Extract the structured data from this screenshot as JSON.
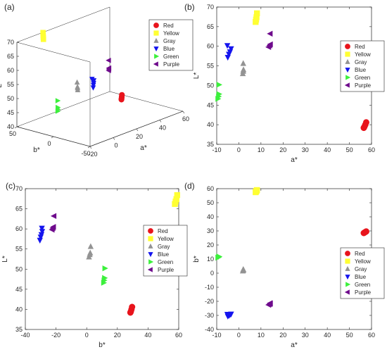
{
  "figure": {
    "colors": {
      "Red": "#e8141c",
      "Yellow": "#ffff33",
      "Gray": "#939393",
      "Blue": "#1414ee",
      "Green": "#3cf03c",
      "Purple": "#6e0a8c",
      "axis": "#262626"
    },
    "markers": {
      "Red": "circle",
      "Yellow": "square",
      "Gray": "triangle-up",
      "Blue": "triangle-down",
      "Green": "triangle-right",
      "Purple": "triangle-left"
    }
  },
  "chart_data": [
    {
      "panel": "(a)",
      "type": "scatter",
      "projection": "3d",
      "xlabel": "a*",
      "ylabel": "b*",
      "zlabel": "L*",
      "xlim": [
        -20,
        60
      ],
      "ylim": [
        -50,
        50
      ],
      "zlim": [
        40,
        70
      ],
      "xticks": [
        -20,
        0,
        20,
        40,
        60
      ],
      "yticks": [
        -50,
        0,
        50
      ],
      "zticks": [
        40,
        45,
        50,
        55,
        60,
        65,
        70
      ],
      "legend": "top-right",
      "legend_entries": [
        "Red",
        "Yellow",
        "Gray",
        "Blue",
        "Green",
        "Purple"
      ],
      "series": [
        {
          "name": "Red",
          "points": [
            [
              56.5,
              28.5,
              39.2
            ],
            [
              56.8,
              28.8,
              39.5
            ],
            [
              57.2,
              29.2,
              40.0
            ],
            [
              57.6,
              29.6,
              40.6
            ]
          ]
        },
        {
          "name": "Yellow",
          "points": [
            [
              7.6,
              57.5,
              66.2
            ],
            [
              7.8,
              58.0,
              66.8
            ],
            [
              8.0,
              58.5,
              67.4
            ],
            [
              8.2,
              59.0,
              68.4
            ]
          ]
        },
        {
          "name": "Gray",
          "points": [
            [
              1.8,
              1.5,
              53.0
            ],
            [
              2.0,
              2.0,
              53.6
            ],
            [
              2.1,
              2.3,
              54.0
            ],
            [
              2.0,
              2.6,
              55.6
            ]
          ]
        },
        {
          "name": "Blue",
          "points": [
            [
              -5.0,
              -30.5,
              57.2
            ],
            [
              -4.5,
              -30.0,
              58.0
            ],
            [
              -4.0,
              -29.5,
              58.6
            ],
            [
              -3.5,
              -29.0,
              59.4
            ],
            [
              -5.2,
              -29.2,
              60.2
            ]
          ]
        },
        {
          "name": "Green",
          "points": [
            [
              -9.5,
              11.0,
              46.6
            ],
            [
              -9.2,
              11.3,
              47.2
            ],
            [
              -9.0,
              11.6,
              47.8
            ],
            [
              -9.0,
              11.8,
              50.2
            ]
          ]
        },
        {
          "name": "Purple",
          "points": [
            [
              13.5,
              -22.5,
              59.8
            ],
            [
              14.0,
              -22.0,
              60.2
            ],
            [
              14.3,
              -21.6,
              60.5
            ],
            [
              14.2,
              -21.3,
              63.2
            ]
          ]
        }
      ]
    },
    {
      "panel": "(b)",
      "type": "scatter",
      "xlabel": "a*",
      "ylabel": "L*",
      "xlim": [
        -10,
        60
      ],
      "ylim": [
        35,
        70
      ],
      "xticks": [
        -10,
        0,
        10,
        20,
        30,
        40,
        50,
        60
      ],
      "yticks": [
        35,
        40,
        45,
        50,
        55,
        60,
        65,
        70
      ],
      "legend": "right",
      "legend_entries": [
        "Red",
        "Yellow",
        "Gray",
        "Blue",
        "Green",
        "Purple"
      ],
      "series": [
        {
          "name": "Red",
          "x": [
            56.5,
            56.8,
            57.2,
            57.6
          ],
          "y": [
            39.2,
            39.5,
            40.0,
            40.6
          ]
        },
        {
          "name": "Yellow",
          "x": [
            7.6,
            7.8,
            8.0,
            8.2
          ],
          "y": [
            66.2,
            66.8,
            67.4,
            68.4
          ]
        },
        {
          "name": "Gray",
          "x": [
            1.8,
            2.0,
            2.1,
            2.0
          ],
          "y": [
            53.0,
            53.6,
            54.0,
            55.6
          ]
        },
        {
          "name": "Blue",
          "x": [
            -5.0,
            -4.5,
            -4.0,
            -3.5,
            -5.2
          ],
          "y": [
            57.2,
            58.0,
            58.6,
            59.4,
            60.2
          ]
        },
        {
          "name": "Green",
          "x": [
            -9.5,
            -9.2,
            -9.0,
            -9.0
          ],
          "y": [
            46.6,
            47.2,
            47.8,
            50.2
          ]
        },
        {
          "name": "Purple",
          "x": [
            13.5,
            14.0,
            14.3,
            14.2
          ],
          "y": [
            59.8,
            60.2,
            60.5,
            63.2
          ]
        }
      ]
    },
    {
      "panel": "(c)",
      "type": "scatter",
      "xlabel": "b*",
      "ylabel": "L*",
      "xlim": [
        -40,
        60
      ],
      "ylim": [
        35,
        70
      ],
      "xticks": [
        -40,
        -20,
        0,
        20,
        40,
        60
      ],
      "yticks": [
        35,
        40,
        45,
        50,
        55,
        60,
        65,
        70
      ],
      "legend": "bottom-right",
      "legend_entries": [
        "Red",
        "Yellow",
        "Gray",
        "Blue",
        "Green",
        "Purple"
      ],
      "series": [
        {
          "name": "Red",
          "x": [
            28.5,
            28.8,
            29.2,
            29.6
          ],
          "y": [
            39.2,
            39.5,
            40.0,
            40.6
          ]
        },
        {
          "name": "Yellow",
          "x": [
            57.5,
            58.0,
            58.5,
            59.0
          ],
          "y": [
            66.2,
            66.8,
            67.4,
            68.4
          ]
        },
        {
          "name": "Gray",
          "x": [
            1.5,
            2.0,
            2.3,
            2.6
          ],
          "y": [
            53.0,
            53.6,
            54.0,
            55.6
          ]
        },
        {
          "name": "Blue",
          "x": [
            -30.5,
            -30.0,
            -29.5,
            -29.0,
            -29.2
          ],
          "y": [
            57.2,
            58.0,
            58.6,
            59.4,
            60.2
          ]
        },
        {
          "name": "Green",
          "x": [
            11.0,
            11.3,
            11.6,
            11.8
          ],
          "y": [
            46.6,
            47.2,
            47.8,
            50.2
          ]
        },
        {
          "name": "Purple",
          "x": [
            -22.5,
            -22.0,
            -21.6,
            -21.3
          ],
          "y": [
            59.8,
            60.2,
            60.5,
            63.2
          ]
        }
      ]
    },
    {
      "panel": "(d)",
      "type": "scatter",
      "xlabel": "a*",
      "ylabel": "b*",
      "xlim": [
        -10,
        60
      ],
      "ylim": [
        -40,
        60
      ],
      "xticks": [
        -10,
        0,
        10,
        20,
        30,
        40,
        50,
        60
      ],
      "yticks": [
        -40,
        -30,
        -20,
        -10,
        0,
        10,
        20,
        30,
        40,
        50,
        60
      ],
      "legend": "right",
      "legend_entries": [
        "Red",
        "Yellow",
        "Gray",
        "Blue",
        "Green",
        "Purple"
      ],
      "series": [
        {
          "name": "Red",
          "x": [
            56.5,
            56.8,
            57.2,
            57.6
          ],
          "y": [
            28.5,
            28.8,
            29.2,
            29.6
          ]
        },
        {
          "name": "Yellow",
          "x": [
            7.6,
            7.8,
            8.0,
            8.2
          ],
          "y": [
            57.5,
            58.0,
            58.5,
            59.0
          ]
        },
        {
          "name": "Gray",
          "x": [
            1.8,
            2.0,
            2.1,
            2.0
          ],
          "y": [
            1.5,
            2.0,
            2.3,
            2.6
          ]
        },
        {
          "name": "Blue",
          "x": [
            -5.0,
            -4.5,
            -4.0,
            -3.5,
            -5.2
          ],
          "y": [
            -30.5,
            -30.0,
            -29.5,
            -29.0,
            -29.2
          ]
        },
        {
          "name": "Green",
          "x": [
            -9.5,
            -9.2,
            -9.0,
            -9.0
          ],
          "y": [
            11.0,
            11.3,
            11.6,
            11.8
          ]
        },
        {
          "name": "Purple",
          "x": [
            13.5,
            14.0,
            14.3,
            14.2
          ],
          "y": [
            -22.5,
            -22.0,
            -21.6,
            -21.3
          ]
        }
      ]
    }
  ]
}
